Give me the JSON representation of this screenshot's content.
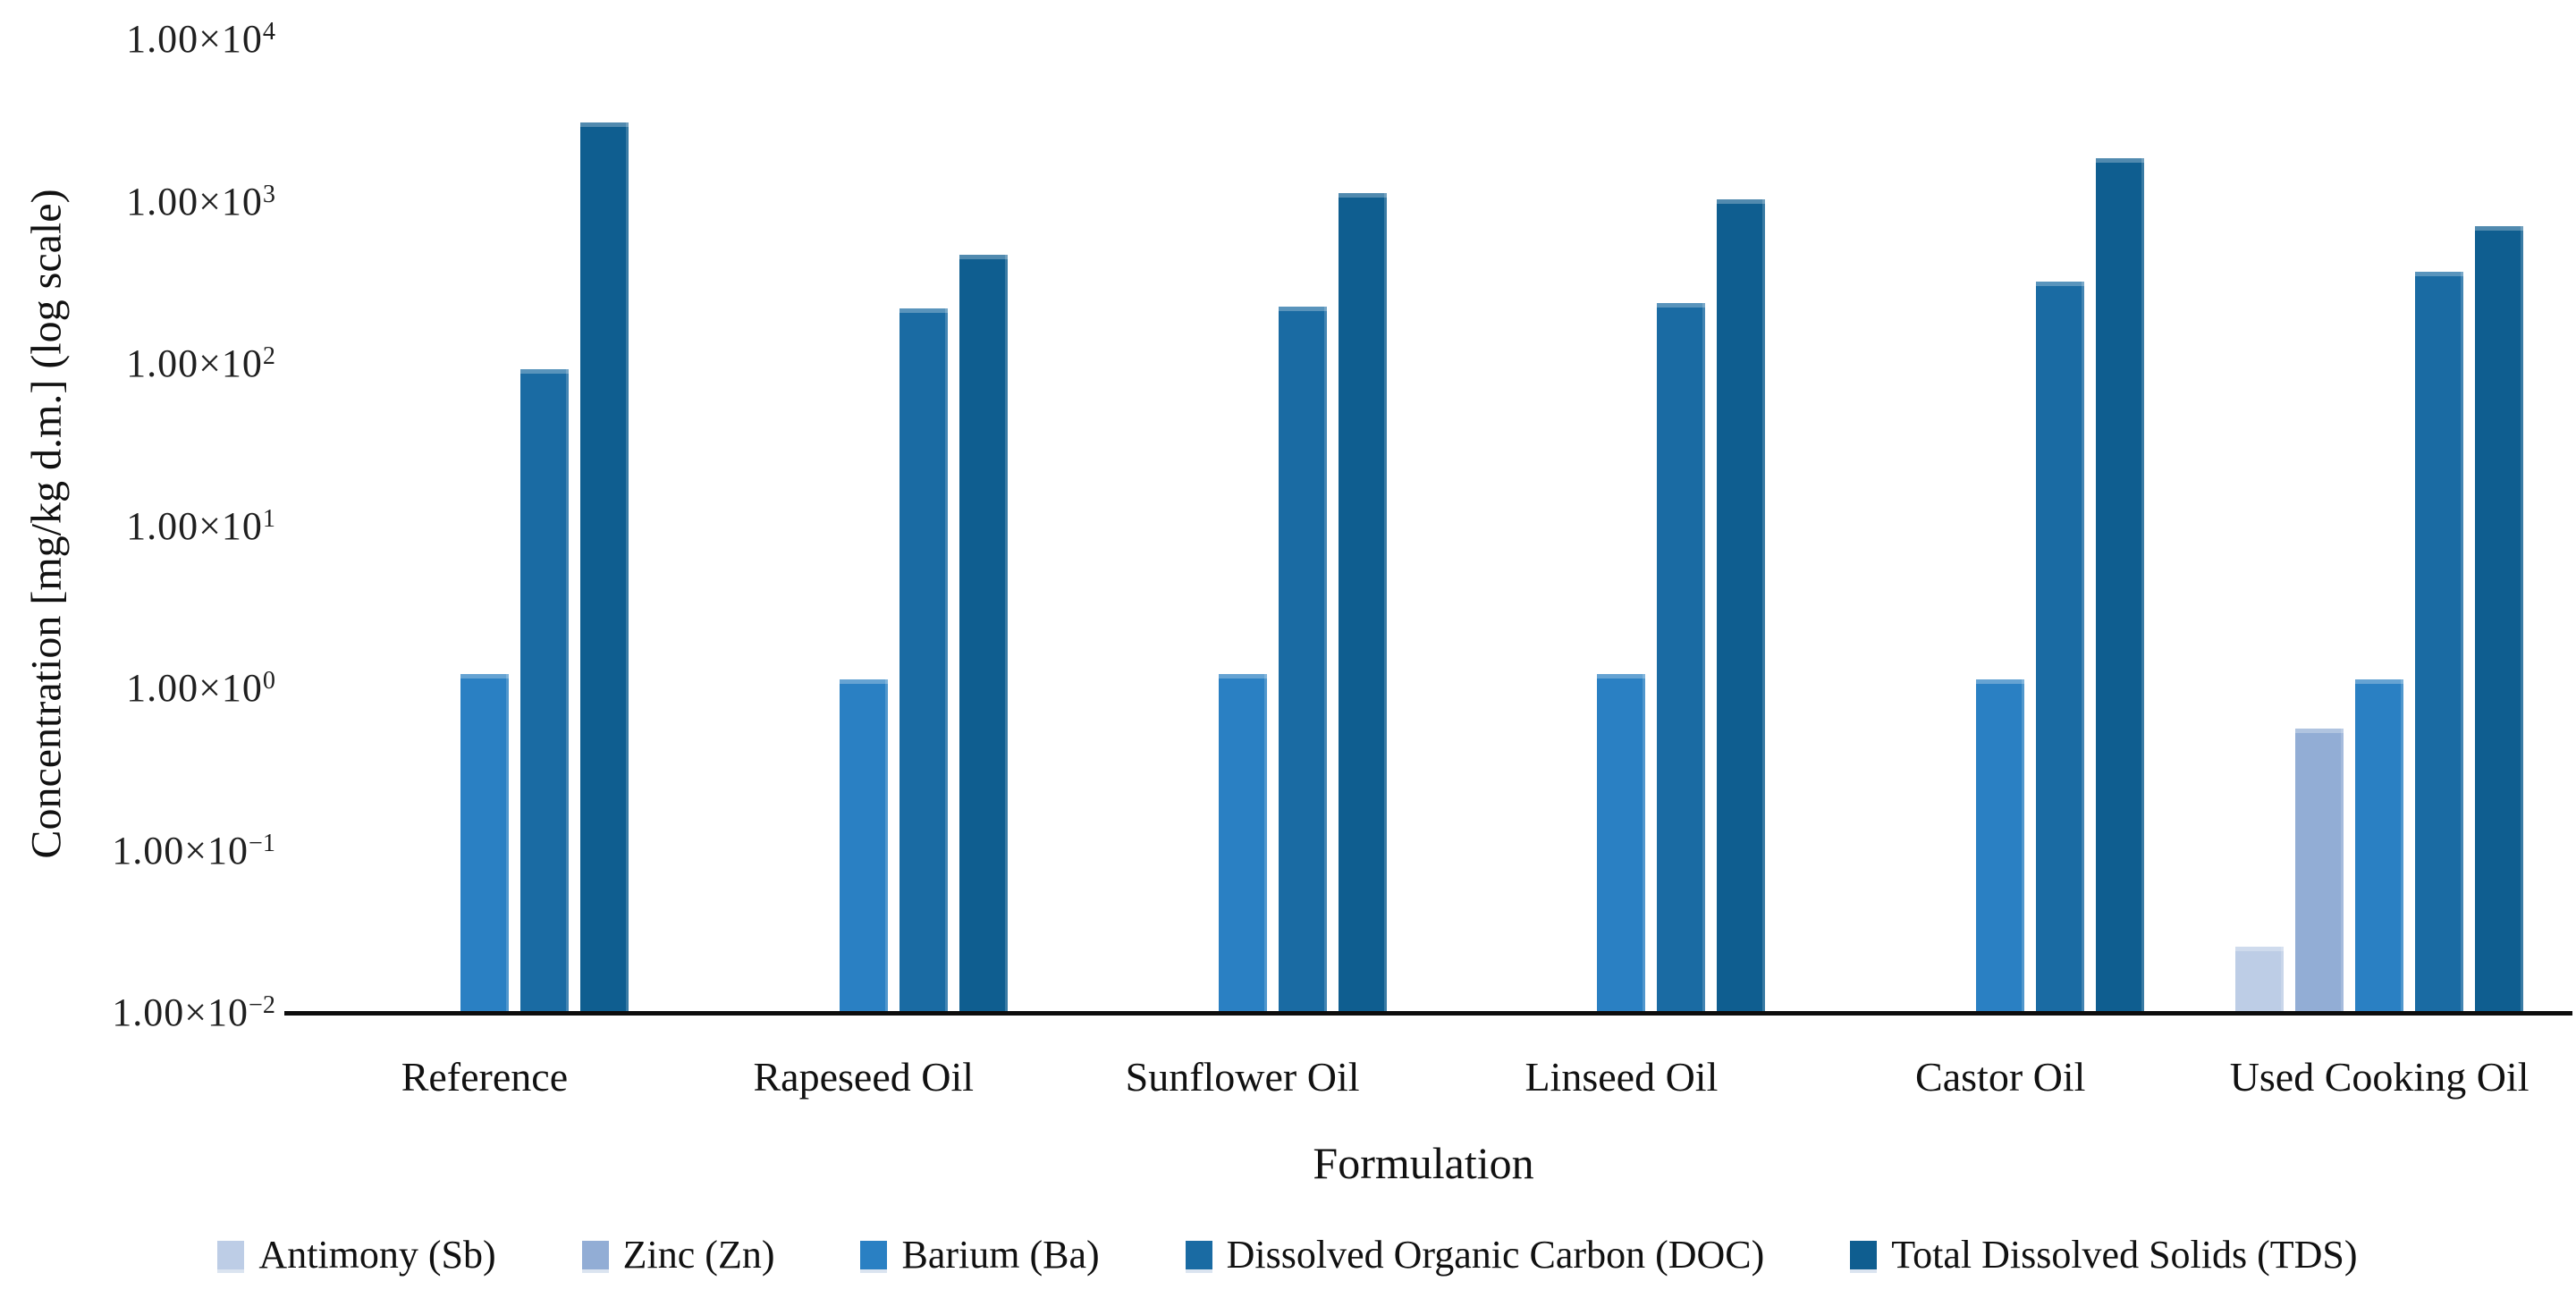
{
  "figure": {
    "background_color": "#ffffff",
    "axis_color": "#0d0d0d"
  },
  "chart_data": {
    "type": "bar",
    "title": "",
    "xlabel": "Formulation",
    "ylabel": "Concentration [mg/kg d.m.] (log scale)",
    "y_scale": "log",
    "ylim": [
      0.01,
      10000
    ],
    "grid": false,
    "legend_position": "bottom",
    "y_ticks": [
      {
        "mantissa": "1.00×10",
        "exponent": 4,
        "value": 10000,
        "label": "1.00×10^4"
      },
      {
        "mantissa": "1.00×10",
        "exponent": 3,
        "value": 1000,
        "label": "1.00×10^3"
      },
      {
        "mantissa": "1.00×10",
        "exponent": 2,
        "value": 100,
        "label": "1.00×10^2"
      },
      {
        "mantissa": "1.00×10",
        "exponent": 1,
        "value": 10,
        "label": "1.00×10^1"
      },
      {
        "mantissa": "1.00×10",
        "exponent": 0,
        "value": 1,
        "label": "1.00×10^0"
      },
      {
        "mantissa": "1.00×10",
        "exponent": -1,
        "value": 0.1,
        "label": "1.00×10^-1"
      },
      {
        "mantissa": "1.00×10",
        "exponent": -2,
        "value": 0.01,
        "label": "1.00×10^-2"
      }
    ],
    "categories": [
      "Reference",
      "Rapeseed Oil",
      "Sunflower Oil",
      "Linseed Oil",
      "Castor Oil",
      "Used Cooking Oil"
    ],
    "series": [
      {
        "name": "Antimony (Sb)",
        "color": "#bdcde6",
        "values": [
          null,
          null,
          null,
          null,
          null,
          0.025
        ]
      },
      {
        "name": "Zinc (Zn)",
        "color": "#92add5",
        "values": [
          null,
          null,
          null,
          null,
          null,
          0.55
        ]
      },
      {
        "name": "Barium (Ba)",
        "color": "#2a80c3",
        "values": [
          1.2,
          1.1,
          1.2,
          1.2,
          1.1,
          1.1
        ]
      },
      {
        "name": "Dissolved Organic Carbon (DOC)",
        "color": "#1a6ba3",
        "values": [
          90,
          215,
          220,
          230,
          315,
          360
        ]
      },
      {
        "name": "Total Dissolved Solids (TDS)",
        "color": "#0f5e90",
        "values": [
          3000,
          460,
          1100,
          1000,
          1800,
          690
        ]
      }
    ]
  }
}
